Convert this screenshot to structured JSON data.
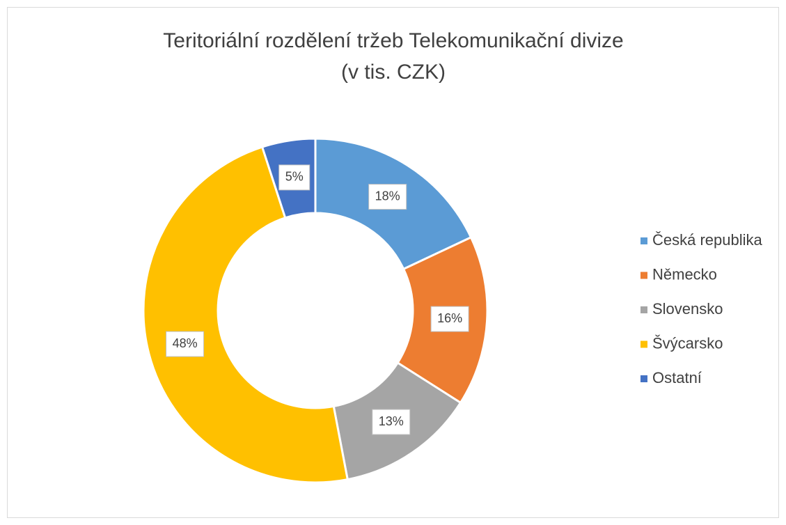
{
  "chart_data": {
    "type": "pie",
    "title": [
      "Teritoriální rozdělení tržeb Telekomunikační divize",
      "(v tis. CZK)"
    ],
    "categories": [
      "Česká republika",
      "Německo",
      "Slovensko",
      "Švýcarsko",
      "Ostatní"
    ],
    "values": [
      18,
      16,
      13,
      48,
      5
    ],
    "value_labels": [
      "18%",
      "16%",
      "13%",
      "48%",
      "5%"
    ],
    "colors": [
      "#5b9bd5",
      "#ed7d31",
      "#a5a5a5",
      "#ffc000",
      "#4472c4"
    ],
    "donut": true,
    "legend": "right"
  }
}
